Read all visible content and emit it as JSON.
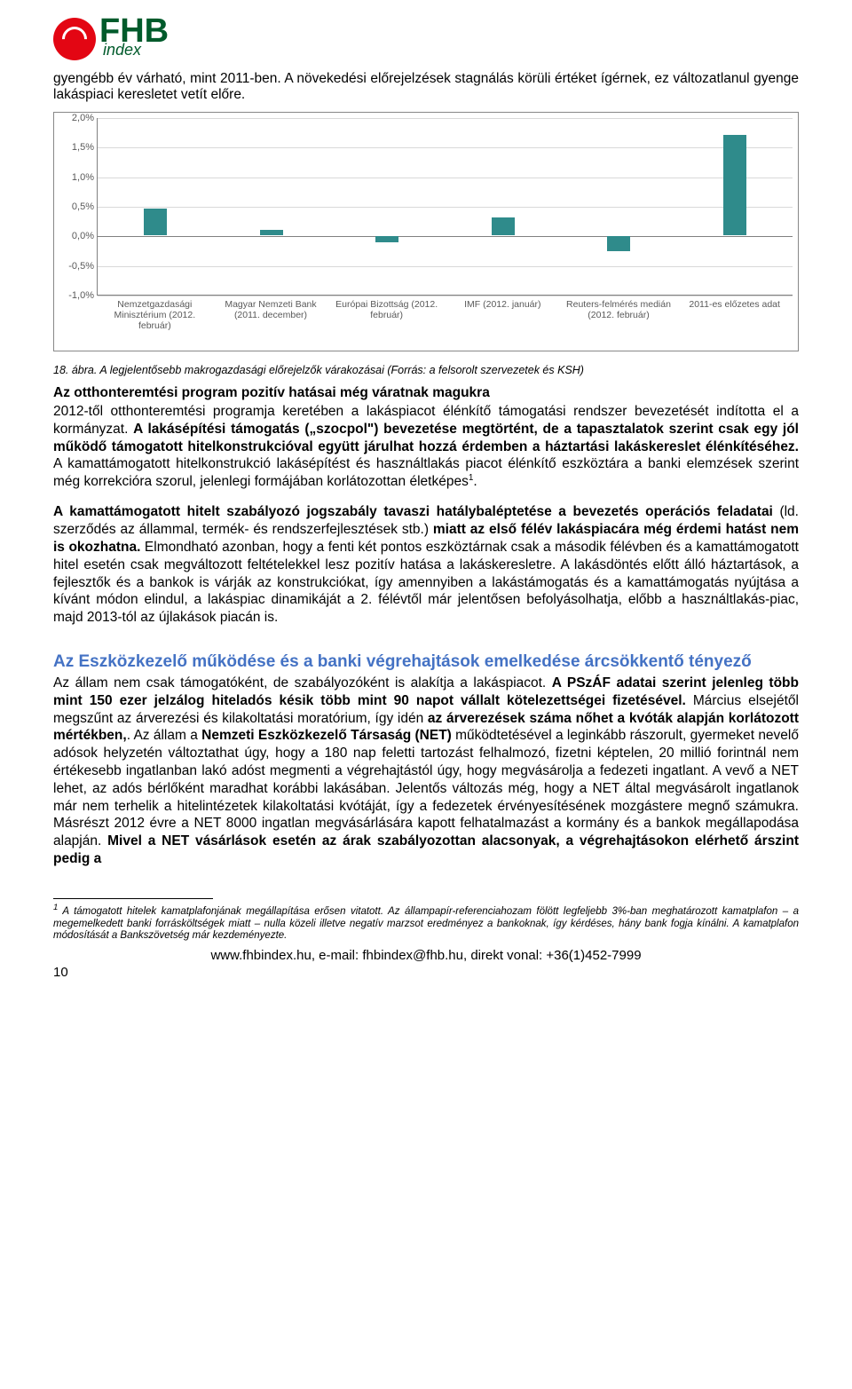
{
  "logo": {
    "main": "FHB",
    "sub": "index"
  },
  "intro": "gyengébb év várható, mint 2011-ben. A növekedési előrejelzések stagnálás körüli értéket ígérnek, ez változatlanul gyenge lakáspiaci keresletet vetít előre.",
  "chart": {
    "type": "bar",
    "ylim": [
      -1.0,
      2.0
    ],
    "ytick_step": 0.5,
    "yticks": [
      "2,0%",
      "1,5%",
      "1,0%",
      "0,5%",
      "0,0%",
      "-0,5%",
      "-1,0%"
    ],
    "bar_color": "#2f8b8b",
    "grid_color": "#d9d9d9",
    "axis_color": "#808080",
    "categories": [
      "Nemzetgazdasági Minisztérium (2012. február)",
      "Magyar Nemzeti Bank (2011. december)",
      "Európai Bizottság (2012. február)",
      "IMF (2012. január)",
      "Reuters-felmérés medián (2012. február)",
      "2011-es előzetes adat"
    ],
    "values": [
      0.45,
      0.1,
      -0.1,
      0.3,
      -0.25,
      1.7
    ]
  },
  "caption": "18. ábra. A legjelentősebb makrogazdasági előrejelzők várakozásai (Forrás: a felsorolt szervezetek és KSH)",
  "section1": {
    "title": "Az otthonteremtési program pozitív hatásai még váratnak magukra",
    "p1a": "2012-től otthonteremtési programja keretében a lakáspiacot élénkítő támogatási rendszer bevezetését indította el a kormányzat. ",
    "p1b": "A lakásépítési támogatás („szocpol\") bevezetése megtörtént, de a tapasztalatok szerint csak egy jól működő támogatott hitelkonstrukcióval együtt járulhat hozzá érdemben a háztartási lakáskereslet élénkítéséhez.",
    "p1c": " A kamattámogatott hitelkonstrukció lakásépítést és használtlakás piacot élénkítő eszköztára a banki elemzések szerint még korrekcióra szorul, jelenlegi formájában korlátozottan életképes",
    "p2a": "A kamattámogatott hitelt szabályozó jogszabály tavaszi hatálybaléptetése a bevezetés operációs feladatai",
    "p2b": " (ld. szerződés az állammal, termék- és rendszerfejlesztések stb.) ",
    "p2c": "miatt az első félév lakáspiacára még érdemi hatást nem is okozhatna.",
    "p2d": " Elmondható azonban, hogy a fenti két pontos eszköztárnak csak a második félévben és a kamattámogatott hitel esetén csak megváltozott feltételekkel lesz pozitív hatása a lakáskeresletre. A lakásdöntés előtt álló háztartások, a fejlesztők és a bankok is várják az konstrukciókat, így amennyiben a lakástámogatás és a kamattámogatás nyújtása a kívánt módon elindul, a lakáspiac dinamikáját a 2. félévtől már jelentősen befolyásolhatja, előbb a használtlakás-piac, majd 2013-tól az újlakások piacán is."
  },
  "section2": {
    "heading": "Az Eszközkezelő működése és a banki végrehajtások emelkedése árcsökkentő tényező",
    "p1a": "Az állam nem csak támogatóként, de szabályozóként is alakítja a lakáspiacot. ",
    "p1b": "A PSzÁF adatai szerint jelenleg több mint 150 ezer jelzálog hiteladós késik több mint 90 napot vállalt kötelezettségei fizetésével.",
    "p1c": " Március elsejétől megszűnt az árverezési és kilakoltatási moratórium, így idén ",
    "p1d": "az árverezések száma nőhet a kvóták alapján korlátozott mértékben,",
    "p1e": ". Az állam a ",
    "p1f": "Nemzeti Eszközkezelő Társaság (NET)",
    "p1g": " működtetésével a leginkább rászorult, gyermeket nevelő adósok helyzetén változtathat úgy, hogy a 180 nap feletti tartozást felhalmozó, fizetni képtelen, 20 millió forintnál nem értékesebb ingatlanban lakó adóst megmenti a végrehajtástól úgy, hogy megvásárolja a fedezeti ingatlant. A vevő a NET lehet, az adós bérlőként maradhat korábbi lakásában. Jelentős változás még, hogy a NET által megvásárolt ingatlanok már nem terhelik a hitelintézetek kilakoltatási kvótáját, így a fedezetek érvényesítésének mozgástere megnő számukra. Másrészt 2012 évre a NET 8000 ingatlan megvásárlására kapott felhatalmazást a kormány és a bankok megállapodása alapján. ",
    "p1h": "Mivel a NET vásárlások esetén az árak szabályozottan alacsonyak, a végrehajtásokon elérhető árszint pedig a"
  },
  "footnote": {
    "num": "1",
    "text": " A támogatott hitelek kamatplafonjának megállapítása erősen vitatott. Az állampapír-referenciahozam fölött legfeljebb 3%-ban meghatározott kamatplafon – a megemelkedett banki forrásköltségek miatt – nulla közeli illetve negatív marzsot eredményez a bankoknak, így kérdéses, hány bank fogja kínálni. A kamatplafon módosítását a Bankszövetség már kezdeményezte."
  },
  "footer": "www.fhbindex.hu, e-mail: fhbindex@fhb.hu, direkt vonal: +36(1)452-7999",
  "page": "10"
}
